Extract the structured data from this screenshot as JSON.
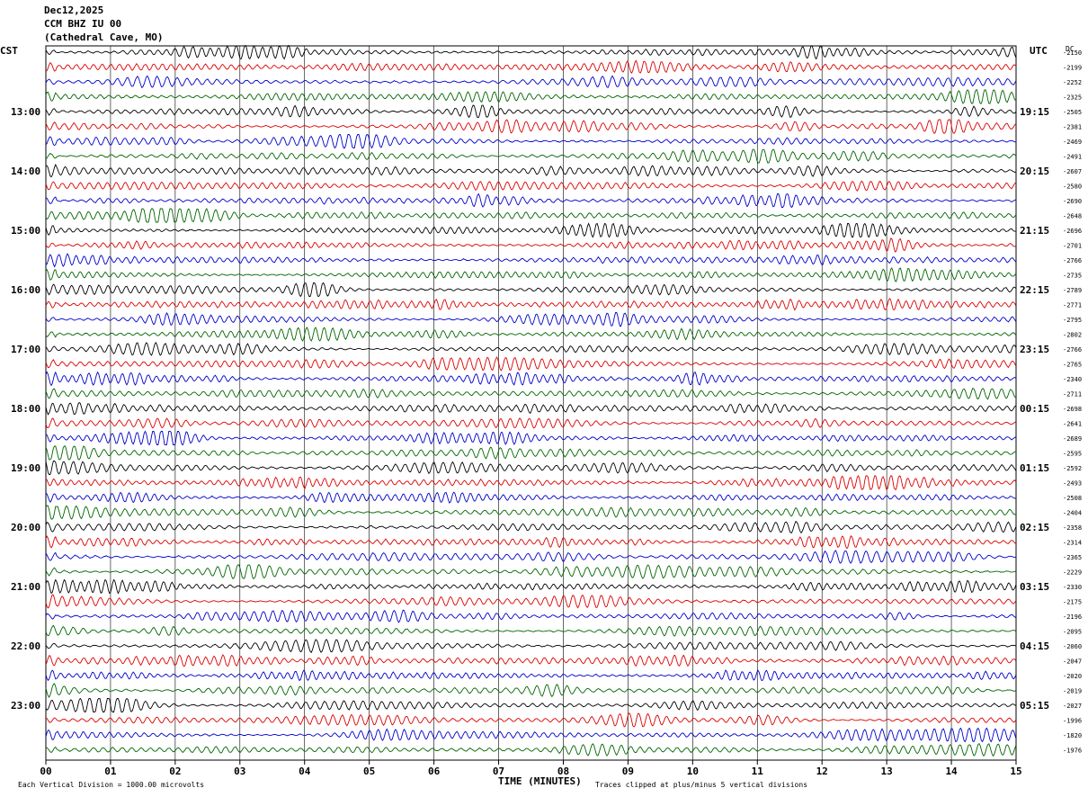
{
  "header": {
    "date": "Dec12,2025",
    "station": "CCM BHZ IU 00",
    "location": "(Cathedral Cave, MO)"
  },
  "left_tz": "CST",
  "right_tz": "UTC",
  "dc_label": "DC",
  "footer": {
    "xlabel": "TIME (MINUTES)",
    "scale_note": "Each Vertical Division = 1000.00 microvolts",
    "clip_note": "Traces clipped at plus/minus 5 vertical divisions"
  },
  "chart_data": {
    "type": "line",
    "title": "CCM BHZ IU 00 (Cathedral Cave, MO)",
    "xlabel": "TIME (MINUTES)",
    "xlim": [
      0,
      15
    ],
    "x_ticks": [
      "00",
      "01",
      "02",
      "03",
      "04",
      "05",
      "06",
      "07",
      "08",
      "09",
      "10",
      "11",
      "12",
      "13",
      "14",
      "15"
    ],
    "trace_colors": [
      "#000000",
      "#dd0000",
      "#0000cc",
      "#006600"
    ],
    "left_time_labels": [
      "13:00",
      "14:00",
      "15:00",
      "16:00",
      "17:00",
      "18:00",
      "19:00",
      "20:00",
      "21:00",
      "22:00",
      "23:00"
    ],
    "right_time_labels": [
      "19:15",
      "20:15",
      "21:15",
      "22:15",
      "23:15",
      "00:15",
      "01:15",
      "02:15",
      "03:15",
      "04:15",
      "05:15"
    ],
    "trace_dc_offsets": [
      "-2150",
      "-2199",
      "-2252",
      "-2325",
      "-2505",
      "-2381",
      "-2469",
      "-2491",
      "-2607",
      "-2580",
      "-2690",
      "-2648",
      "-2696",
      "-2701",
      "-2766",
      "-2735",
      "-2789",
      "-2771",
      "-2795",
      "-2802",
      "-2766",
      "-2765",
      "-2340",
      "-2711",
      "-2698",
      "-2641",
      "-2689",
      "-2595",
      "-2592",
      "-2493",
      "-2508",
      "-2404",
      "-2358",
      "-2314",
      "-2365",
      "-2229",
      "-2330",
      "-2175",
      "-2196",
      "-2095",
      "-2060",
      "-2047",
      "-2020",
      "-2019",
      "-2027",
      "-1996",
      "-1820",
      "-1976"
    ],
    "vertical_division_microvolts": 1000.0,
    "clip_divisions": 5
  }
}
